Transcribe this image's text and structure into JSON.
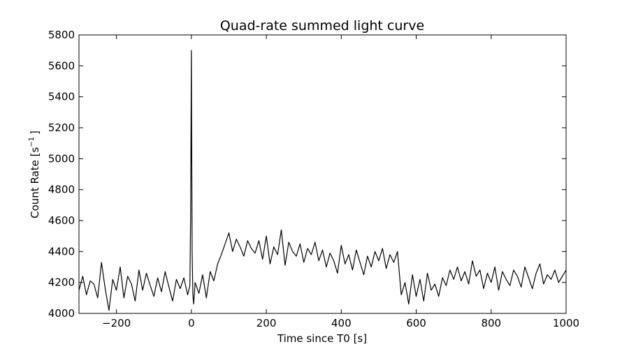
{
  "chart_data": {
    "type": "line",
    "title": "Quad-rate summed light curve",
    "xlabel": "Time since T0 [s]",
    "ylabel_main": "Count Rate [s",
    "ylabel_sup": "−1",
    "ylabel_end": "]",
    "xlim": [
      -300,
      1000
    ],
    "ylim": [
      4000,
      5800
    ],
    "xticks": [
      -200,
      0,
      200,
      400,
      600,
      800,
      1000
    ],
    "yticks": [
      4000,
      4200,
      4400,
      4600,
      4800,
      5000,
      5200,
      5400,
      5600,
      5800
    ],
    "xtick_labels": [
      "−200",
      "0",
      "200",
      "400",
      "600",
      "800",
      "1000"
    ],
    "ytick_labels": [
      "4000",
      "4200",
      "4400",
      "4600",
      "4800",
      "5000",
      "5200",
      "5400",
      "5600",
      "5800"
    ],
    "grid": false,
    "line_color": "#000000",
    "series": [
      {
        "x": [
          -300,
          -290,
          -280,
          -270,
          -260,
          -250,
          -240,
          -230,
          -220,
          -210,
          -200,
          -190,
          -180,
          -170,
          -160,
          -150,
          -140,
          -130,
          -120,
          -110,
          -100,
          -90,
          -80,
          -70,
          -60,
          -50,
          -40,
          -30,
          -20,
          -10,
          -4,
          -2,
          0,
          2,
          4,
          6,
          10,
          20,
          30,
          40,
          50,
          60,
          70,
          80,
          90,
          100,
          110,
          120,
          130,
          140,
          150,
          160,
          170,
          180,
          190,
          200,
          210,
          220,
          230,
          240,
          250,
          260,
          270,
          280,
          290,
          300,
          310,
          320,
          330,
          340,
          350,
          360,
          370,
          380,
          390,
          400,
          410,
          420,
          430,
          440,
          450,
          460,
          470,
          480,
          490,
          500,
          510,
          520,
          530,
          540,
          550,
          560,
          570,
          580,
          590,
          600,
          610,
          620,
          630,
          640,
          650,
          660,
          670,
          680,
          690,
          700,
          710,
          720,
          730,
          740,
          750,
          760,
          770,
          780,
          790,
          800,
          810,
          820,
          830,
          840,
          850,
          860,
          870,
          880,
          890,
          900,
          910,
          920,
          930,
          940,
          950,
          960,
          970,
          980,
          990,
          1000
        ],
        "y": [
          4150,
          4240,
          4120,
          4210,
          4190,
          4100,
          4330,
          4160,
          4020,
          4220,
          4150,
          4300,
          4100,
          4240,
          4190,
          4080,
          4280,
          4150,
          4260,
          4180,
          4110,
          4230,
          4140,
          4270,
          4170,
          4080,
          4220,
          4160,
          4230,
          4120,
          4180,
          4650,
          5700,
          4400,
          4120,
          4060,
          4200,
          4130,
          4250,
          4100,
          4270,
          4210,
          4320,
          4380,
          4450,
          4520,
          4400,
          4480,
          4430,
          4370,
          4470,
          4420,
          4390,
          4470,
          4350,
          4500,
          4320,
          4430,
          4380,
          4540,
          4310,
          4460,
          4400,
          4370,
          4450,
          4330,
          4420,
          4380,
          4460,
          4340,
          4410,
          4300,
          4390,
          4340,
          4260,
          4440,
          4320,
          4380,
          4280,
          4410,
          4330,
          4250,
          4370,
          4300,
          4400,
          4340,
          4420,
          4290,
          4380,
          4330,
          4400,
          4120,
          4200,
          4060,
          4250,
          4110,
          4220,
          4080,
          4260,
          4150,
          4190,
          4110,
          4230,
          4180,
          4280,
          4220,
          4300,
          4210,
          4270,
          4190,
          4340,
          4240,
          4280,
          4160,
          4260,
          4200,
          4300,
          4150,
          4270,
          4220,
          4180,
          4280,
          4240,
          4170,
          4300,
          4230,
          4160,
          4260,
          4320,
          4190,
          4250,
          4220,
          4280,
          4200,
          4240,
          4280
        ]
      }
    ]
  }
}
